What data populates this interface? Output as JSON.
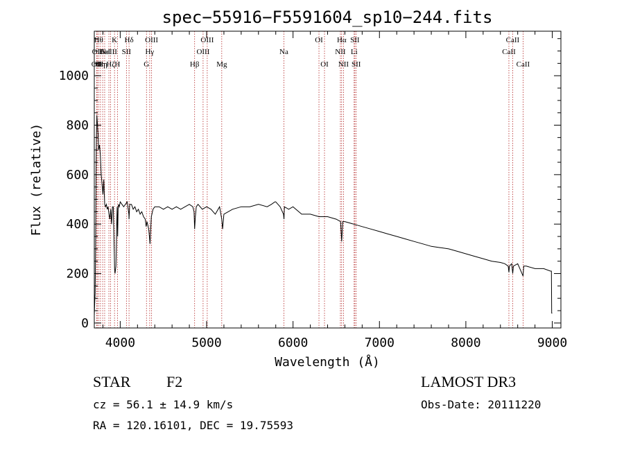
{
  "chart_data": {
    "type": "line",
    "title": "spec−55916−F5591604_sp10−244.fits",
    "xlabel": "Wavelength (Å)",
    "ylabel": "Flux (relative)",
    "xlim": [
      3700,
      9100
    ],
    "ylim": [
      -20,
      1180
    ],
    "xticks": [
      4000,
      5000,
      6000,
      7000,
      8000,
      9000
    ],
    "yticks": [
      0,
      200,
      400,
      600,
      800,
      1000
    ],
    "xtick_labels": [
      "4000",
      "5000",
      "6000",
      "7000",
      "8000",
      "9000"
    ],
    "ytick_labels": [
      "0",
      "200",
      "400",
      "600",
      "800",
      "1000"
    ],
    "line_color": "#000000",
    "marker_color": "#b22222",
    "series": [
      {
        "name": "flux",
        "x": [
          3700,
          3705,
          3710,
          3715,
          3720,
          3725,
          3730,
          3735,
          3740,
          3745,
          3750,
          3760,
          3770,
          3780,
          3790,
          3800,
          3810,
          3820,
          3830,
          3840,
          3850,
          3860,
          3870,
          3880,
          3890,
          3900,
          3910,
          3920,
          3930,
          3935,
          3940,
          3950,
          3960,
          3965,
          3970,
          3975,
          3980,
          3990,
          4000,
          4020,
          4040,
          4060,
          4080,
          4100,
          4102,
          4110,
          4130,
          4150,
          4170,
          4190,
          4210,
          4230,
          4250,
          4270,
          4290,
          4300,
          4310,
          4330,
          4340,
          4345,
          4350,
          4360,
          4380,
          4400,
          4450,
          4500,
          4550,
          4600,
          4650,
          4700,
          4750,
          4800,
          4840,
          4855,
          4861,
          4870,
          4880,
          4900,
          4950,
          5000,
          5050,
          5100,
          5150,
          5175,
          5185,
          5200,
          5300,
          5400,
          5500,
          5600,
          5700,
          5750,
          5790,
          5800,
          5850,
          5890,
          5895,
          5900,
          5950,
          6000,
          6100,
          6200,
          6300,
          6400,
          6500,
          6550,
          6560,
          6563,
          6566,
          6575,
          6600,
          6700,
          6800,
          6900,
          7000,
          7100,
          7200,
          7300,
          7400,
          7500,
          7600,
          7700,
          7800,
          7900,
          8000,
          8100,
          8200,
          8300,
          8400,
          8450,
          8490,
          8498,
          8505,
          8530,
          8542,
          8550,
          8600,
          8662,
          8670,
          8700,
          8800,
          8900,
          8980,
          8990,
          8993,
          9000
        ],
        "y": [
          30,
          80,
          120,
          300,
          600,
          750,
          840,
          810,
          780,
          760,
          700,
          720,
          680,
          600,
          560,
          520,
          580,
          480,
          470,
          480,
          460,
          470,
          440,
          420,
          460,
          400,
          470,
          470,
          300,
          220,
          200,
          230,
          400,
          470,
          350,
          460,
          480,
          470,
          490,
          480,
          470,
          480,
          490,
          440,
          420,
          480,
          480,
          460,
          470,
          450,
          460,
          440,
          450,
          430,
          420,
          390,
          410,
          380,
          340,
          320,
          360,
          430,
          460,
          470,
          470,
          460,
          470,
          460,
          470,
          460,
          470,
          480,
          470,
          450,
          380,
          430,
          470,
          480,
          460,
          470,
          460,
          440,
          470,
          420,
          380,
          440,
          460,
          470,
          470,
          480,
          470,
          480,
          490,
          490,
          470,
          440,
          420,
          470,
          460,
          470,
          440,
          440,
          430,
          430,
          420,
          410,
          350,
          330,
          350,
          410,
          410,
          400,
          390,
          380,
          370,
          360,
          350,
          340,
          330,
          320,
          310,
          305,
          300,
          290,
          280,
          270,
          260,
          250,
          245,
          240,
          230,
          205,
          230,
          240,
          200,
          230,
          240,
          190,
          230,
          230,
          220,
          220,
          210,
          210,
          40,
          40
        ]
      }
    ],
    "line_markers": [
      {
        "wavelength": 3727,
        "label": "OII",
        "row": 2
      },
      {
        "wavelength": 3734,
        "label": "OII",
        "row": 1
      },
      {
        "wavelength": 3750,
        "label": "Hθ",
        "row": 0
      },
      {
        "wavelength": 3771,
        "label": "Hη",
        "row": 2
      },
      {
        "wavelength": 3797,
        "label": "Hη",
        "row": 2
      },
      {
        "wavelength": 3820,
        "label": "HeI",
        "row": 1
      },
      {
        "wavelength": 3869,
        "label": "NeIII",
        "row": 1
      },
      {
        "wavelength": 3889,
        "label": "Hζ",
        "row": 2
      },
      {
        "wavelength": 3934,
        "label": "K",
        "row": 0
      },
      {
        "wavelength": 3968,
        "label": "H",
        "row": 2
      },
      {
        "wavelength": 4072,
        "label": "SII",
        "row": 1
      },
      {
        "wavelength": 4102,
        "label": "Hδ",
        "row": 0
      },
      {
        "wavelength": 4304,
        "label": "G",
        "row": 2
      },
      {
        "wavelength": 4341,
        "label": "Hγ",
        "row": 1
      },
      {
        "wavelength": 4363,
        "label": "OIII",
        "row": 0
      },
      {
        "wavelength": 4861,
        "label": "Hβ",
        "row": 2
      },
      {
        "wavelength": 4959,
        "label": "OIII",
        "row": 1
      },
      {
        "wavelength": 5007,
        "label": "OIII",
        "row": 0
      },
      {
        "wavelength": 5175,
        "label": "Mg",
        "row": 2
      },
      {
        "wavelength": 5894,
        "label": "Na",
        "row": 1
      },
      {
        "wavelength": 6300,
        "label": "OI",
        "row": 0
      },
      {
        "wavelength": 6364,
        "label": "OI",
        "row": 2
      },
      {
        "wavelength": 6548,
        "label": "NII",
        "row": 1
      },
      {
        "wavelength": 6563,
        "label": "Hα",
        "row": 0
      },
      {
        "wavelength": 6584,
        "label": "NII",
        "row": 2
      },
      {
        "wavelength": 6707,
        "label": "Li",
        "row": 1
      },
      {
        "wavelength": 6716,
        "label": "SII",
        "row": 0
      },
      {
        "wavelength": 6731,
        "label": "SII",
        "row": 2
      },
      {
        "wavelength": 8498,
        "label": "CaII",
        "row": 1
      },
      {
        "wavelength": 8542,
        "label": "CaII",
        "row": 0
      },
      {
        "wavelength": 8662,
        "label": "CaII",
        "row": 2
      }
    ]
  },
  "info": {
    "object_class": "STAR",
    "subclass": "F2",
    "survey": "LAMOST DR3",
    "redshift": "cz = 56.1 ± 14.9 km/s",
    "obs_date": "Obs-Date: 20111220",
    "coords": "RA = 120.16101, DEC =  19.75593"
  }
}
